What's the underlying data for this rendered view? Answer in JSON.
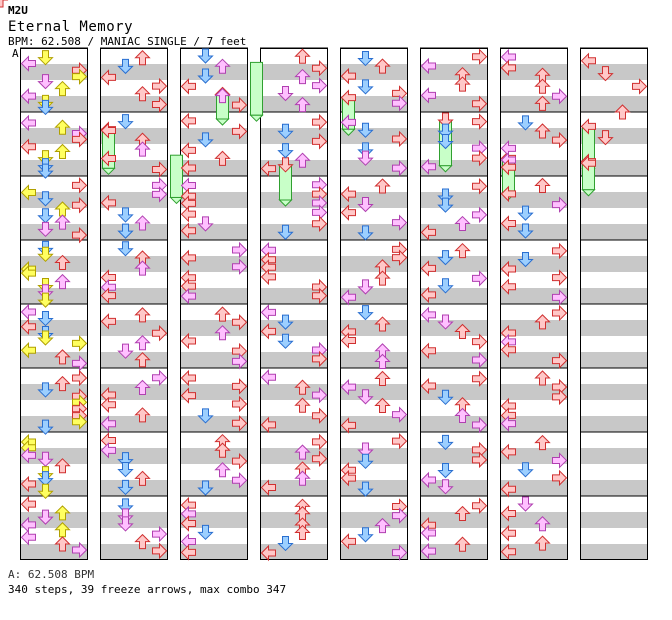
{
  "song": {
    "artist": "M2U",
    "title": "Eternal Memory",
    "meta_line": "BPM: 62.508 / MANIAC SINGLE / 7 feet",
    "section_marker": "A"
  },
  "footer": {
    "bpm_line": "A: 62.508 BPM",
    "stats_line": "340 steps, 39 freeze arrows, max combo 347"
  },
  "colors": {
    "left_arrow": "#ffc8c8",
    "left_stroke": "#d03030",
    "down_arrow": "#9ccfff",
    "down_stroke": "#2a6fd0",
    "quarter_pink": "#ffc0ff",
    "quarter_stroke": "#b040b0",
    "eighth_yellow": "#ffff60",
    "eighth_stroke": "#b0a000",
    "freeze_fill": "#c8ffc8",
    "freeze_stroke": "#30a030",
    "stripe_gray": "#c8c8c8"
  },
  "chart_data": {
    "type": "table",
    "columns": 8,
    "measures_per_column": 8,
    "lanes": [
      "left",
      "down",
      "up",
      "right"
    ],
    "notes": [
      [
        0,
        0.5,
        2,
        "e"
      ],
      [
        0,
        1.5,
        0,
        "q"
      ],
      [
        0,
        1.5,
        1,
        "q"
      ],
      [
        0,
        1.0,
        2,
        "q"
      ],
      [
        0,
        2.2,
        3,
        "e"
      ],
      [
        0,
        0.9,
        1,
        "s"
      ],
      [
        0,
        2.6,
        2,
        "q"
      ],
      [
        1,
        0.2,
        0,
        "q"
      ],
      [
        1,
        0.5,
        1,
        "e"
      ],
      [
        1,
        1.0,
        2,
        "q"
      ],
      [
        1,
        1.7,
        0,
        "q"
      ],
      [
        1,
        2.0,
        1,
        "e"
      ],
      [
        1,
        2.6,
        3,
        "q"
      ],
      [
        2,
        0.2,
        0,
        "e"
      ],
      [
        2,
        0.6,
        1,
        "q"
      ],
      [
        2,
        1.0,
        2,
        "q"
      ],
      [
        2,
        1.4,
        3,
        "q"
      ],
      [
        2,
        1.8,
        0,
        "q"
      ],
      [
        2,
        2.4,
        2,
        "e"
      ],
      [
        3,
        0.3,
        0,
        "q"
      ],
      [
        3,
        0.8,
        3,
        "e"
      ],
      [
        3,
        1.4,
        2,
        "q"
      ],
      [
        3,
        2.0,
        1,
        "q"
      ],
      [
        3,
        2.6,
        0,
        "q"
      ],
      [
        4,
        0.4,
        1,
        "q"
      ],
      [
        4,
        1.2,
        2,
        "q"
      ],
      [
        4,
        2.0,
        3,
        "e"
      ],
      [
        4,
        2.8,
        0,
        "q"
      ],
      [
        5,
        0.2,
        2,
        "q"
      ],
      [
        5,
        0.7,
        1,
        "e"
      ],
      [
        5,
        1.3,
        3,
        "q"
      ],
      [
        5,
        1.9,
        0,
        "q"
      ],
      [
        6,
        0.3,
        0,
        "q"
      ],
      [
        6,
        1.0,
        1,
        "q"
      ],
      [
        6,
        1.6,
        2,
        "e"
      ],
      [
        6,
        2.4,
        3,
        "q"
      ]
    ],
    "freezes": [
      [
        1,
        0,
        2,
        3,
        1.1
      ],
      [
        2,
        2,
        1,
        2,
        0.7
      ],
      [
        3,
        1,
        3,
        4,
        1.0
      ],
      [
        4,
        0,
        1,
        3,
        0.9
      ],
      [
        5,
        1,
        2,
        0,
        1.3
      ],
      [
        6,
        0,
        3,
        2,
        1.0
      ],
      [
        7,
        0,
        2,
        2,
        1.2
      ],
      [
        7,
        0,
        3,
        3,
        0.8
      ],
      [
        2,
        4,
        0,
        2,
        1.5
      ],
      [
        1,
        4,
        3,
        1,
        1.2
      ]
    ]
  }
}
